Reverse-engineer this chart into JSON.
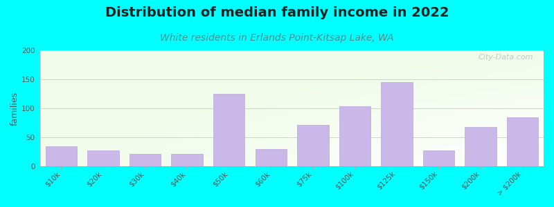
{
  "title": "Distribution of median family income in 2022",
  "subtitle": "White residents in Erlands Point-Kitsap Lake, WA",
  "ylabel": "families",
  "categories": [
    "$10k",
    "$20k",
    "$30k",
    "$40k",
    "$50k",
    "$60k",
    "$75k",
    "$100k",
    "$125k",
    "$150k",
    "$200k",
    "> $200k"
  ],
  "values": [
    35,
    27,
    22,
    22,
    125,
    30,
    72,
    104,
    145,
    27,
    68,
    85
  ],
  "bar_color": "#c9b8e8",
  "bar_edgecolor": "#b8a8d8",
  "bg_color": "#00ffff",
  "title_fontsize": 14,
  "subtitle_fontsize": 10,
  "subtitle_color": "#4a9090",
  "ylabel_fontsize": 9,
  "tick_fontsize": 7.5,
  "ylim": [
    0,
    200
  ],
  "yticks": [
    0,
    50,
    100,
    150,
    200
  ],
  "watermark": "City-Data.com"
}
